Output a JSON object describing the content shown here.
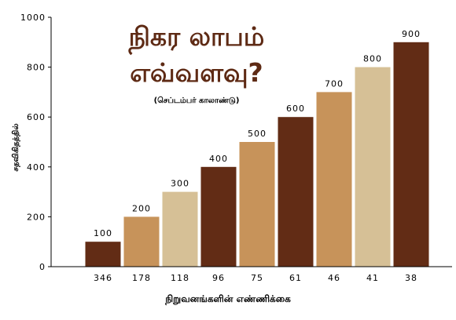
{
  "chart_data": {
    "type": "bar",
    "title_line1": "நிகர லாபம்",
    "title_line2": "எவ்வளவு?",
    "subtitle": "(செப்டம்பர் காலாண்டு)",
    "xlabel": "நிறுவனங்களின் எண்ணிக்கை",
    "ylabel": "சதவிகிதத்தில்",
    "ylim": [
      0,
      1000
    ],
    "yticks": [
      0,
      200,
      400,
      600,
      800,
      1000
    ],
    "grid": false,
    "categories": [
      "346",
      "178",
      "118",
      "96",
      "75",
      "61",
      "46",
      "41",
      "38"
    ],
    "values": [
      100,
      200,
      300,
      400,
      500,
      600,
      700,
      800,
      900
    ],
    "bar_colors": [
      "#622c15",
      "#c7935a",
      "#d6c096",
      "#622c15",
      "#c7935a",
      "#622c15",
      "#c7935a",
      "#d6c096",
      "#622c15"
    ],
    "title_color": "#5e2a14"
  }
}
